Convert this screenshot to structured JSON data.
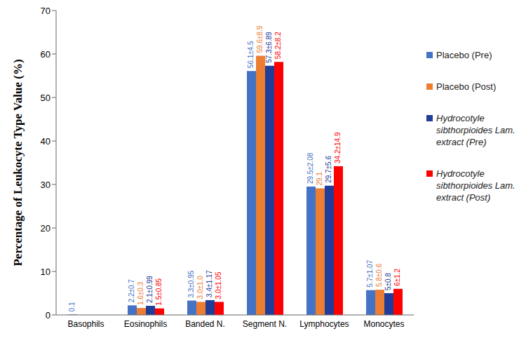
{
  "chart_data": {
    "type": "bar",
    "y_label": "Percentage of Leukocyte Type Value (%)",
    "categories": [
      "Basophils",
      "Eosinophils",
      "Banded N.",
      "Segment N.",
      "Lymphocytes",
      "Monocytes"
    ],
    "series": [
      {
        "name": "Placebo (Pre)",
        "color": "#4472c4",
        "values": [
          0.1,
          2.2,
          3.3,
          56.1,
          29.5,
          5.7
        ],
        "value_labels": [
          "0.1",
          "2.2±0.7",
          "3.3±0.95",
          "56.1±4.5",
          "29.5±2.08",
          "5.7±1.07"
        ]
      },
      {
        "name": "Placebo (Post)",
        "color": "#ed7d31",
        "values": [
          null,
          1.6,
          3.0,
          59.6,
          29.1,
          5.8
        ],
        "value_labels": [
          null,
          "1.6±0.3",
          "3.0±1.0",
          "59.6±8.9",
          "29.1",
          "5.8±0.6"
        ]
      },
      {
        "name": "Hydrocotyle sibthorpioides Lam. extract (Pre)",
        "color": "#1f3d99",
        "values": [
          null,
          2.1,
          3.4,
          57.3,
          29.7,
          5
        ],
        "value_labels": [
          null,
          "2.1±0.99",
          "3.4±1.17",
          "57.3±6.89",
          "29.7±5.6",
          "5±0.8"
        ]
      },
      {
        "name": "Hydrocotyle sibthorpioides Lam. extract (Post)",
        "color": "#ff0000",
        "values": [
          null,
          1.5,
          3.0,
          58.2,
          34.2,
          6
        ],
        "value_labels": [
          null,
          "1.5±0.85",
          "3.0±1.05",
          "58.2±8.2",
          "34.2±14.9",
          "6±1.2"
        ]
      }
    ],
    "ylim": [
      0,
      70
    ],
    "yticks": [
      0,
      10,
      20,
      30,
      40,
      50,
      60,
      70
    ],
    "grid": false,
    "legend": "right",
    "data_labels": true
  }
}
